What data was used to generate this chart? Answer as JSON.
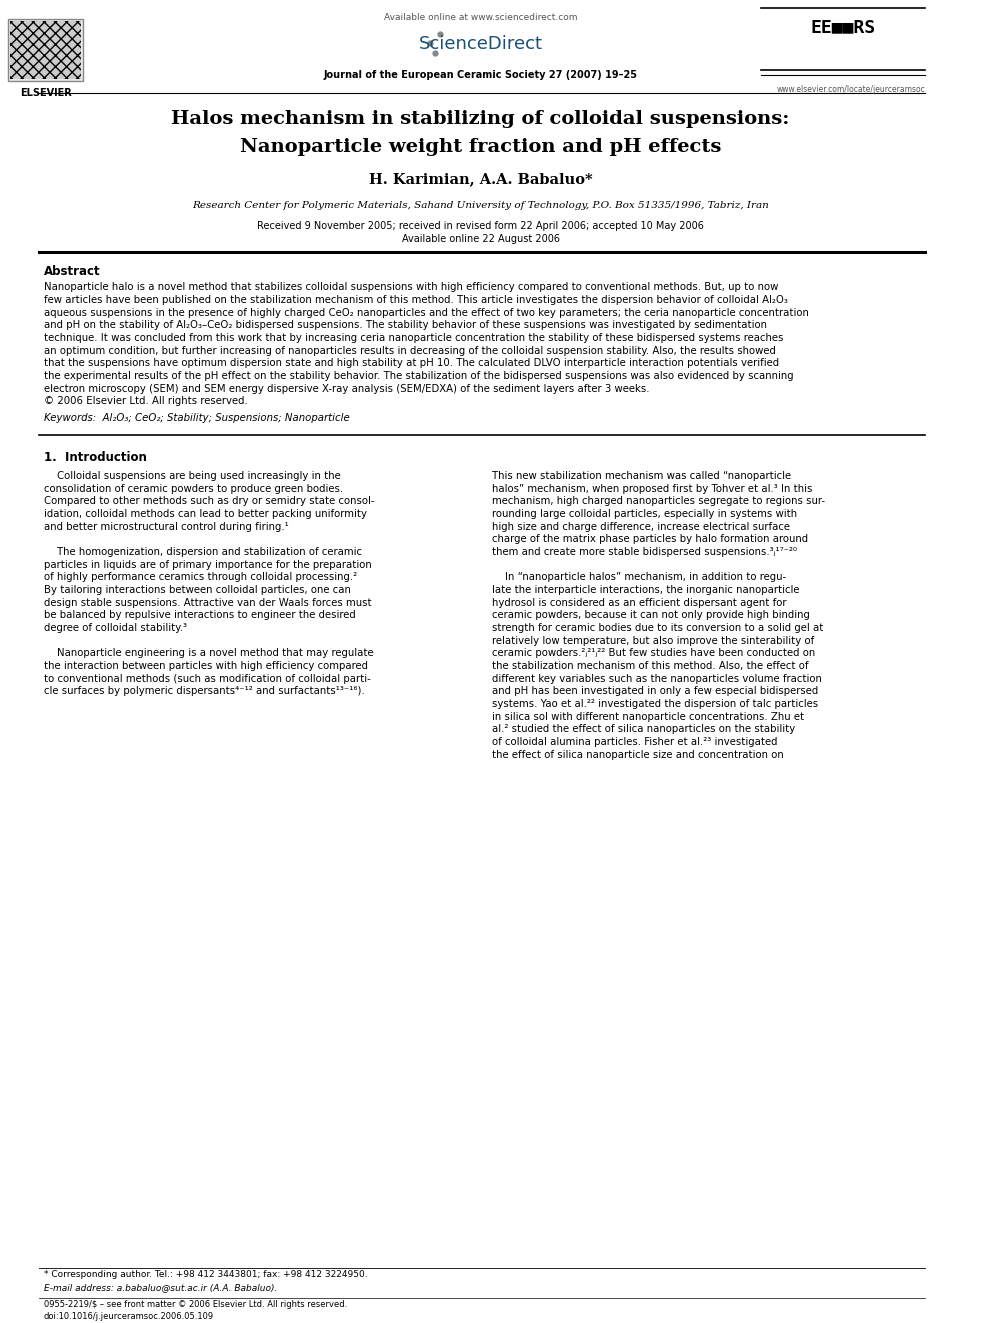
{
  "page_title_line1": "Halos mechanism in stabilizing of colloidal suspensions:",
  "page_title_line2": "Nanoparticle weight fraction and pH effects",
  "authors": "H. Karimian, A.A. Babaluo*",
  "affiliation": "Research Center for Polymeric Materials, Sahand University of Technology, P.O. Box 51335/1996, Tabriz, Iran",
  "received": "Received 9 November 2005; received in revised form 22 April 2006; accepted 10 May 2006",
  "available": "Available online 22 August 2006",
  "journal_name": "Journal of the European Ceramic Society 27 (2007) 19–25",
  "available_online": "Available online at www.sciencedirect.com",
  "website": "www.elsevier.com/locate/jeurceramsoc",
  "doi": "doi:10.1016/j.jeurceramsoc.2006.05.109",
  "issn": "0955-2219/$ – see front matter © 2006 Elsevier Ltd. All rights reserved.",
  "abstract_title": "Abstract",
  "abstract_lines": [
    "Nanoparticle halo is a novel method that stabilizes colloidal suspensions with high efficiency compared to conventional methods. But, up to now",
    "few articles have been published on the stabilization mechanism of this method. This article investigates the dispersion behavior of colloidal Al₂O₃",
    "aqueous suspensions in the presence of highly charged CeO₂ nanoparticles and the effect of two key parameters; the ceria nanoparticle concentration",
    "and pH on the stability of Al₂O₃–CeO₂ bidispersed suspensions. The stability behavior of these suspensions was investigated by sedimentation",
    "technique. It was concluded from this work that by increasing ceria nanoparticle concentration the stability of these bidispersed systems reaches",
    "an optimum condition, but further increasing of nanoparticles results in decreasing of the colloidal suspension stability. Also, the results showed",
    "that the suspensions have optimum dispersion state and high stability at pH 10. The calculated DLVO interparticle interaction potentials verified",
    "the experimental results of the pH effect on the stability behavior. The stabilization of the bidispersed suspensions was also evidenced by scanning",
    "electron microscopy (SEM) and SEM energy dispersive X-ray analysis (SEM/EDXA) of the sediment layers after 3 weeks.",
    "© 2006 Elsevier Ltd. All rights reserved."
  ],
  "keywords": "Keywords:  Al₂O₃; CeO₂; Stability; Suspensions; Nanoparticle",
  "section1_title": "1.  Introduction",
  "left_intro_lines": [
    "    Colloidal suspensions are being used increasingly in the",
    "consolidation of ceramic powders to produce green bodies.",
    "Compared to other methods such as dry or semidry state consol-",
    "idation, colloidal methods can lead to better packing uniformity",
    "and better microstructural control during firing.¹",
    "",
    "    The homogenization, dispersion and stabilization of ceramic",
    "particles in liquids are of primary importance for the preparation",
    "of highly performance ceramics through colloidal processing.²",
    "By tailoring interactions between colloidal particles, one can",
    "design stable suspensions. Attractive van der Waals forces must",
    "be balanced by repulsive interactions to engineer the desired",
    "degree of colloidal stability.³",
    "",
    "    Nanoparticle engineering is a novel method that may regulate",
    "the interaction between particles with high efficiency compared",
    "to conventional methods (such as modification of colloidal parti-",
    "cle surfaces by polymeric dispersants⁴⁻¹² and surfactants¹³⁻¹⁶)."
  ],
  "right_intro_lines": [
    "This new stabilization mechanism was called “nanoparticle",
    "halos” mechanism, when proposed first by Tohver et al.³ In this",
    "mechanism, high charged nanoparticles segregate to regions sur-",
    "rounding large colloidal particles, especially in systems with",
    "high size and charge difference, increase electrical surface",
    "charge of the matrix phase particles by halo formation around",
    "them and create more stable bidispersed suspensions.³ⱼ¹⁷⁻²⁰",
    "",
    "    In “nanoparticle halos” mechanism, in addition to regu-",
    "late the interparticle interactions, the inorganic nanoparticle",
    "hydrosol is considered as an efficient dispersant agent for",
    "ceramic powders, because it can not only provide high binding",
    "strength for ceramic bodies due to its conversion to a solid gel at",
    "relatively low temperature, but also improve the sinterability of",
    "ceramic powders.²ⱼ²¹ⱼ²² But few studies have been conducted on",
    "the stabilization mechanism of this method. Also, the effect of",
    "different key variables such as the nanoparticles volume fraction",
    "and pH has been investigated in only a few especial bidispersed",
    "systems. Yao et al.²² investigated the dispersion of talc particles",
    "in silica sol with different nanoparticle concentrations. Zhu et",
    "al.² studied the effect of silica nanoparticles on the stability",
    "of colloidal alumina particles. Fisher et al.²³ investigated",
    "the effect of silica nanoparticle size and concentration on"
  ],
  "footnote_star": "* Corresponding author. Tel.: +98 412 3443801; fax: +98 412 3224950.",
  "footnote_email": "E-mail address: a.babaluo@sut.ac.ir (A.A. Babaluo).",
  "bg_color": "#ffffff",
  "text_color": "#000000"
}
